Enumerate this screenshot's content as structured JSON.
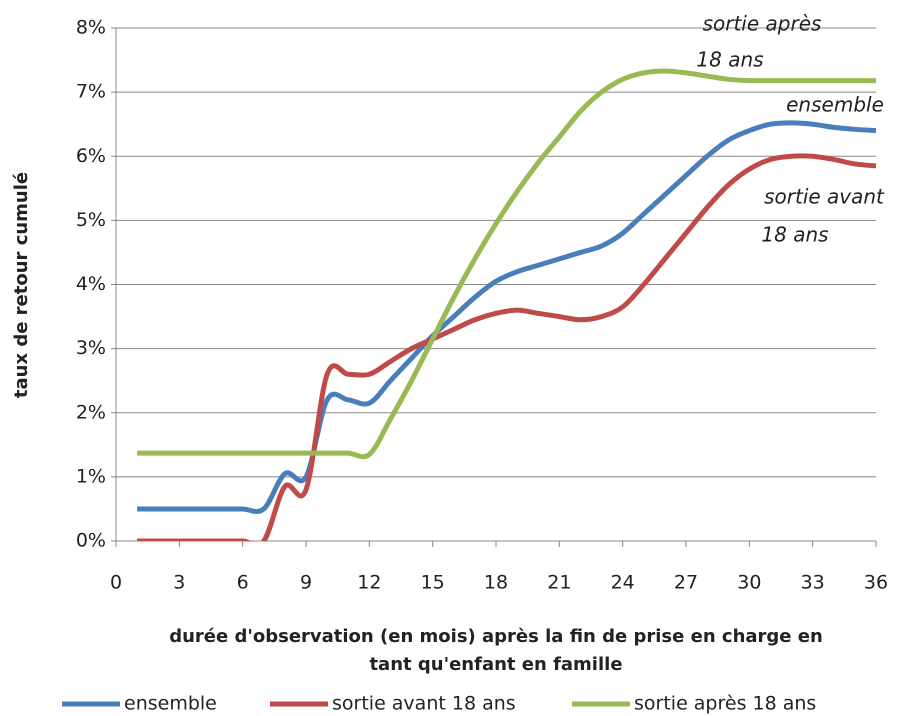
{
  "chart_data": {
    "type": "line",
    "ylabel": "taux de retour cumulé",
    "xlabel": [
      "durée d'observation (en mois) après la fin de prise en charge en",
      "tant qu'enfant en famille"
    ],
    "x": [
      1,
      2,
      3,
      4,
      5,
      6,
      7,
      8,
      9,
      10,
      11,
      12,
      13,
      14,
      15,
      16,
      17,
      18,
      19,
      20,
      21,
      22,
      23,
      24,
      25,
      26,
      27,
      28,
      29,
      30,
      31,
      32,
      33,
      34,
      35,
      36
    ],
    "series": [
      {
        "name": "ensemble",
        "color": "#4a7ebb",
        "values": [
          0.5,
          0.5,
          0.5,
          0.5,
          0.5,
          0.5,
          0.5,
          1.05,
          1.0,
          2.2,
          2.2,
          2.15,
          2.5,
          2.85,
          3.2,
          3.5,
          3.8,
          4.05,
          4.2,
          4.3,
          4.4,
          4.5,
          4.6,
          4.8,
          5.1,
          5.4,
          5.7,
          6.0,
          6.25,
          6.4,
          6.5,
          6.52,
          6.5,
          6.45,
          6.42,
          6.4
        ]
      },
      {
        "name": "sortie avant 18 ans",
        "color": "#be4b48",
        "values": [
          0,
          0,
          0,
          0,
          0,
          0,
          0,
          0.85,
          0.8,
          2.6,
          2.6,
          2.6,
          2.8,
          3.0,
          3.15,
          3.3,
          3.45,
          3.55,
          3.6,
          3.55,
          3.5,
          3.45,
          3.5,
          3.65,
          4.0,
          4.4,
          4.8,
          5.2,
          5.55,
          5.8,
          5.95,
          6.0,
          6.0,
          5.95,
          5.88,
          5.85
        ]
      },
      {
        "name": "sortie après 18 ans",
        "color": "#98b954",
        "values": [
          1.37,
          1.37,
          1.37,
          1.37,
          1.37,
          1.37,
          1.37,
          1.37,
          1.37,
          1.37,
          1.37,
          1.35,
          1.9,
          2.5,
          3.15,
          3.8,
          4.4,
          4.95,
          5.45,
          5.9,
          6.3,
          6.7,
          7.0,
          7.2,
          7.3,
          7.33,
          7.3,
          7.25,
          7.2,
          7.18,
          7.18,
          7.18,
          7.18,
          7.18,
          7.18,
          7.18
        ]
      }
    ],
    "annotations": [
      "sortie après",
      "18 ans",
      "ensemble",
      "sortie avant",
      "18 ans"
    ],
    "xlim": [
      0,
      36
    ],
    "xticks": [
      0,
      3,
      6,
      9,
      12,
      15,
      18,
      21,
      24,
      27,
      30,
      33,
      36
    ],
    "ylim": [
      0,
      8
    ],
    "yticks": [
      {
        "value": 0,
        "label": "0%"
      },
      {
        "value": 1,
        "label": "1%"
      },
      {
        "value": 2,
        "label": "2%"
      },
      {
        "value": 3,
        "label": "3%"
      },
      {
        "value": 4,
        "label": "4%"
      },
      {
        "value": 5,
        "label": "5%"
      },
      {
        "value": 6,
        "label": "6%"
      },
      {
        "value": 7,
        "label": "7%"
      },
      {
        "value": 8,
        "label": "8%"
      }
    ],
    "grid": true,
    "legend": "bottom"
  }
}
